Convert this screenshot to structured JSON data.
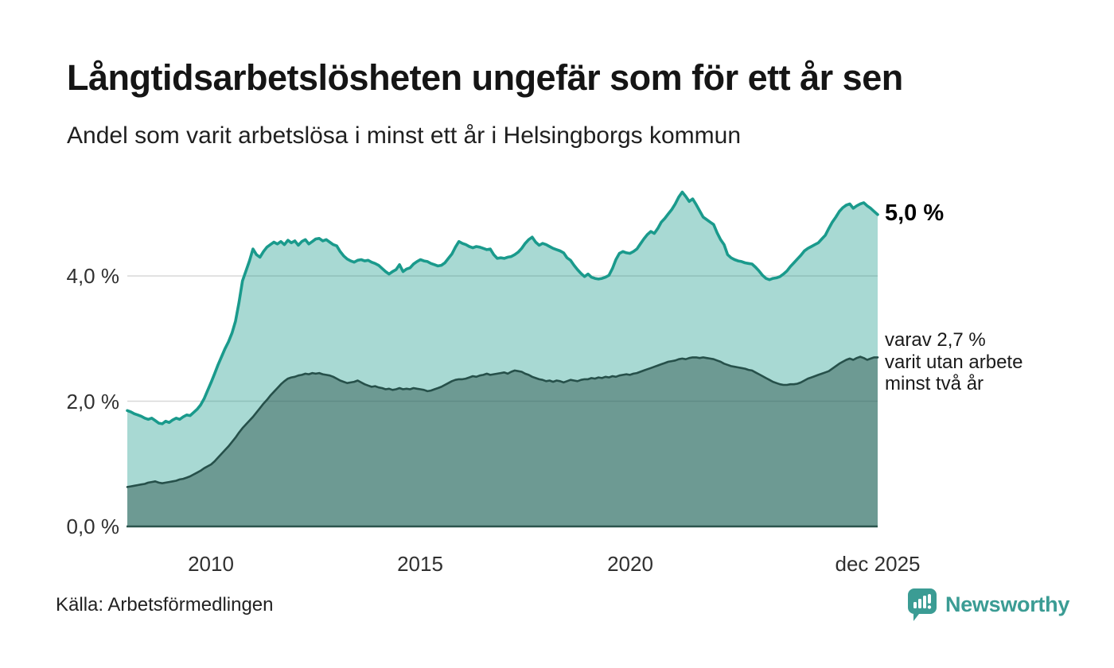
{
  "colors": {
    "accent_line": "#1a9a8c",
    "accent_fill": "rgba(26,154,140,0.38)",
    "dark_line": "#26504a",
    "dark_fill": "rgba(28,66,60,0.42)",
    "gridline": "#d8d8d8",
    "baseline": "#2b544d",
    "title_text": "#151515",
    "axis_text": "#303030",
    "brand_teal": "#3b9c94"
  },
  "footer": {
    "source": "Källa: Arbetsförmedlingen",
    "brand": "Newsworthy"
  },
  "chart_data": {
    "type": "area",
    "title": "Långtidsarbetslösheten ungefär som för ett år sen",
    "subtitle": "Andel som varit arbetslösa i minst ett år i Helsingborgs kommun",
    "xlabel": "",
    "ylabel": "",
    "x_start": "2008-01",
    "x_end": "2025-12",
    "frequency": "monthly",
    "ylim": [
      0,
      5.65
    ],
    "grid": "horizontal",
    "legend_position": "right-annotations",
    "y_ticks": [
      {
        "value": 0,
        "label": "0,0 %"
      },
      {
        "value": 2,
        "label": "2,0 %"
      },
      {
        "value": 4,
        "label": "4,0 %"
      }
    ],
    "x_ticks": [
      {
        "month_index": 24,
        "label": "2010"
      },
      {
        "month_index": 84,
        "label": "2015"
      },
      {
        "month_index": 144,
        "label": "2020"
      },
      {
        "month_index": 215,
        "label": "dec 2025"
      }
    ],
    "annotations": {
      "total_end_label": "5,0 %",
      "two_year_lines": [
        "varav 2,7 %",
        "varit utan arbete",
        "minst två år"
      ]
    },
    "series": [
      {
        "name": "Andel arbetslösa minst ett år",
        "end_value": 5.0,
        "values": [
          1.85,
          1.83,
          1.8,
          1.78,
          1.76,
          1.73,
          1.71,
          1.73,
          1.69,
          1.65,
          1.64,
          1.68,
          1.66,
          1.7,
          1.73,
          1.71,
          1.75,
          1.78,
          1.77,
          1.82,
          1.87,
          1.94,
          2.04,
          2.17,
          2.3,
          2.44,
          2.58,
          2.71,
          2.84,
          2.95,
          3.09,
          3.28,
          3.58,
          3.92,
          4.08,
          4.24,
          4.43,
          4.34,
          4.3,
          4.39,
          4.46,
          4.5,
          4.54,
          4.51,
          4.55,
          4.5,
          4.57,
          4.53,
          4.56,
          4.49,
          4.55,
          4.58,
          4.51,
          4.55,
          4.59,
          4.6,
          4.56,
          4.58,
          4.54,
          4.5,
          4.48,
          4.39,
          4.32,
          4.27,
          4.24,
          4.22,
          4.25,
          4.26,
          4.24,
          4.25,
          4.22,
          4.2,
          4.17,
          4.12,
          4.07,
          4.03,
          4.07,
          4.1,
          4.18,
          4.07,
          4.11,
          4.13,
          4.19,
          4.23,
          4.26,
          4.24,
          4.23,
          4.2,
          4.18,
          4.16,
          4.17,
          4.21,
          4.28,
          4.35,
          4.46,
          4.55,
          4.52,
          4.5,
          4.47,
          4.45,
          4.47,
          4.46,
          4.44,
          4.42,
          4.43,
          4.34,
          4.28,
          4.29,
          4.28,
          4.3,
          4.31,
          4.34,
          4.38,
          4.44,
          4.52,
          4.58,
          4.62,
          4.54,
          4.49,
          4.52,
          4.5,
          4.47,
          4.44,
          4.42,
          4.4,
          4.37,
          4.29,
          4.25,
          4.17,
          4.1,
          4.04,
          3.99,
          4.03,
          3.98,
          3.96,
          3.95,
          3.96,
          3.98,
          4.01,
          4.12,
          4.26,
          4.36,
          4.39,
          4.37,
          4.36,
          4.39,
          4.43,
          4.51,
          4.59,
          4.66,
          4.71,
          4.68,
          4.76,
          4.86,
          4.92,
          4.99,
          5.06,
          5.15,
          5.26,
          5.34,
          5.27,
          5.19,
          5.23,
          5.14,
          5.04,
          4.94,
          4.9,
          4.86,
          4.82,
          4.69,
          4.58,
          4.5,
          4.34,
          4.29,
          4.26,
          4.24,
          4.23,
          4.21,
          4.2,
          4.19,
          4.14,
          4.08,
          4.01,
          3.96,
          3.94,
          3.96,
          3.97,
          3.99,
          4.03,
          4.08,
          4.15,
          4.21,
          4.27,
          4.33,
          4.4,
          4.44,
          4.47,
          4.5,
          4.53,
          4.59,
          4.65,
          4.76,
          4.86,
          4.94,
          5.03,
          5.09,
          5.13,
          5.15,
          5.08,
          5.12,
          5.15,
          5.17,
          5.12,
          5.08,
          5.03,
          4.98
        ]
      },
      {
        "name": "varav arbetslösa minst två år",
        "end_value": 2.7,
        "values": [
          0.63,
          0.64,
          0.65,
          0.66,
          0.67,
          0.68,
          0.7,
          0.71,
          0.72,
          0.7,
          0.69,
          0.7,
          0.71,
          0.72,
          0.73,
          0.75,
          0.76,
          0.78,
          0.8,
          0.83,
          0.86,
          0.89,
          0.93,
          0.96,
          0.99,
          1.04,
          1.1,
          1.16,
          1.22,
          1.28,
          1.35,
          1.42,
          1.5,
          1.57,
          1.63,
          1.69,
          1.75,
          1.82,
          1.89,
          1.96,
          2.02,
          2.09,
          2.15,
          2.21,
          2.27,
          2.32,
          2.36,
          2.38,
          2.39,
          2.41,
          2.42,
          2.44,
          2.43,
          2.45,
          2.44,
          2.45,
          2.43,
          2.42,
          2.41,
          2.39,
          2.36,
          2.33,
          2.31,
          2.29,
          2.3,
          2.31,
          2.33,
          2.3,
          2.27,
          2.25,
          2.23,
          2.24,
          2.22,
          2.21,
          2.19,
          2.2,
          2.18,
          2.19,
          2.21,
          2.19,
          2.2,
          2.19,
          2.21,
          2.2,
          2.19,
          2.18,
          2.16,
          2.17,
          2.19,
          2.21,
          2.23,
          2.26,
          2.29,
          2.32,
          2.34,
          2.35,
          2.35,
          2.36,
          2.38,
          2.4,
          2.39,
          2.41,
          2.42,
          2.44,
          2.42,
          2.43,
          2.44,
          2.45,
          2.46,
          2.44,
          2.47,
          2.49,
          2.48,
          2.47,
          2.44,
          2.42,
          2.39,
          2.37,
          2.35,
          2.34,
          2.32,
          2.33,
          2.31,
          2.33,
          2.32,
          2.3,
          2.32,
          2.34,
          2.33,
          2.32,
          2.34,
          2.35,
          2.35,
          2.37,
          2.36,
          2.38,
          2.37,
          2.39,
          2.38,
          2.4,
          2.39,
          2.41,
          2.42,
          2.43,
          2.42,
          2.44,
          2.45,
          2.47,
          2.49,
          2.51,
          2.53,
          2.55,
          2.57,
          2.59,
          2.61,
          2.63,
          2.64,
          2.65,
          2.67,
          2.68,
          2.67,
          2.69,
          2.7,
          2.7,
          2.69,
          2.7,
          2.69,
          2.68,
          2.67,
          2.65,
          2.63,
          2.6,
          2.58,
          2.56,
          2.55,
          2.54,
          2.53,
          2.52,
          2.5,
          2.49,
          2.46,
          2.43,
          2.4,
          2.37,
          2.34,
          2.31,
          2.29,
          2.27,
          2.26,
          2.26,
          2.27,
          2.27,
          2.28,
          2.3,
          2.33,
          2.36,
          2.38,
          2.4,
          2.42,
          2.44,
          2.46,
          2.48,
          2.52,
          2.56,
          2.6,
          2.63,
          2.66,
          2.68,
          2.66,
          2.69,
          2.71,
          2.69,
          2.66,
          2.68,
          2.7,
          2.7
        ]
      }
    ]
  }
}
